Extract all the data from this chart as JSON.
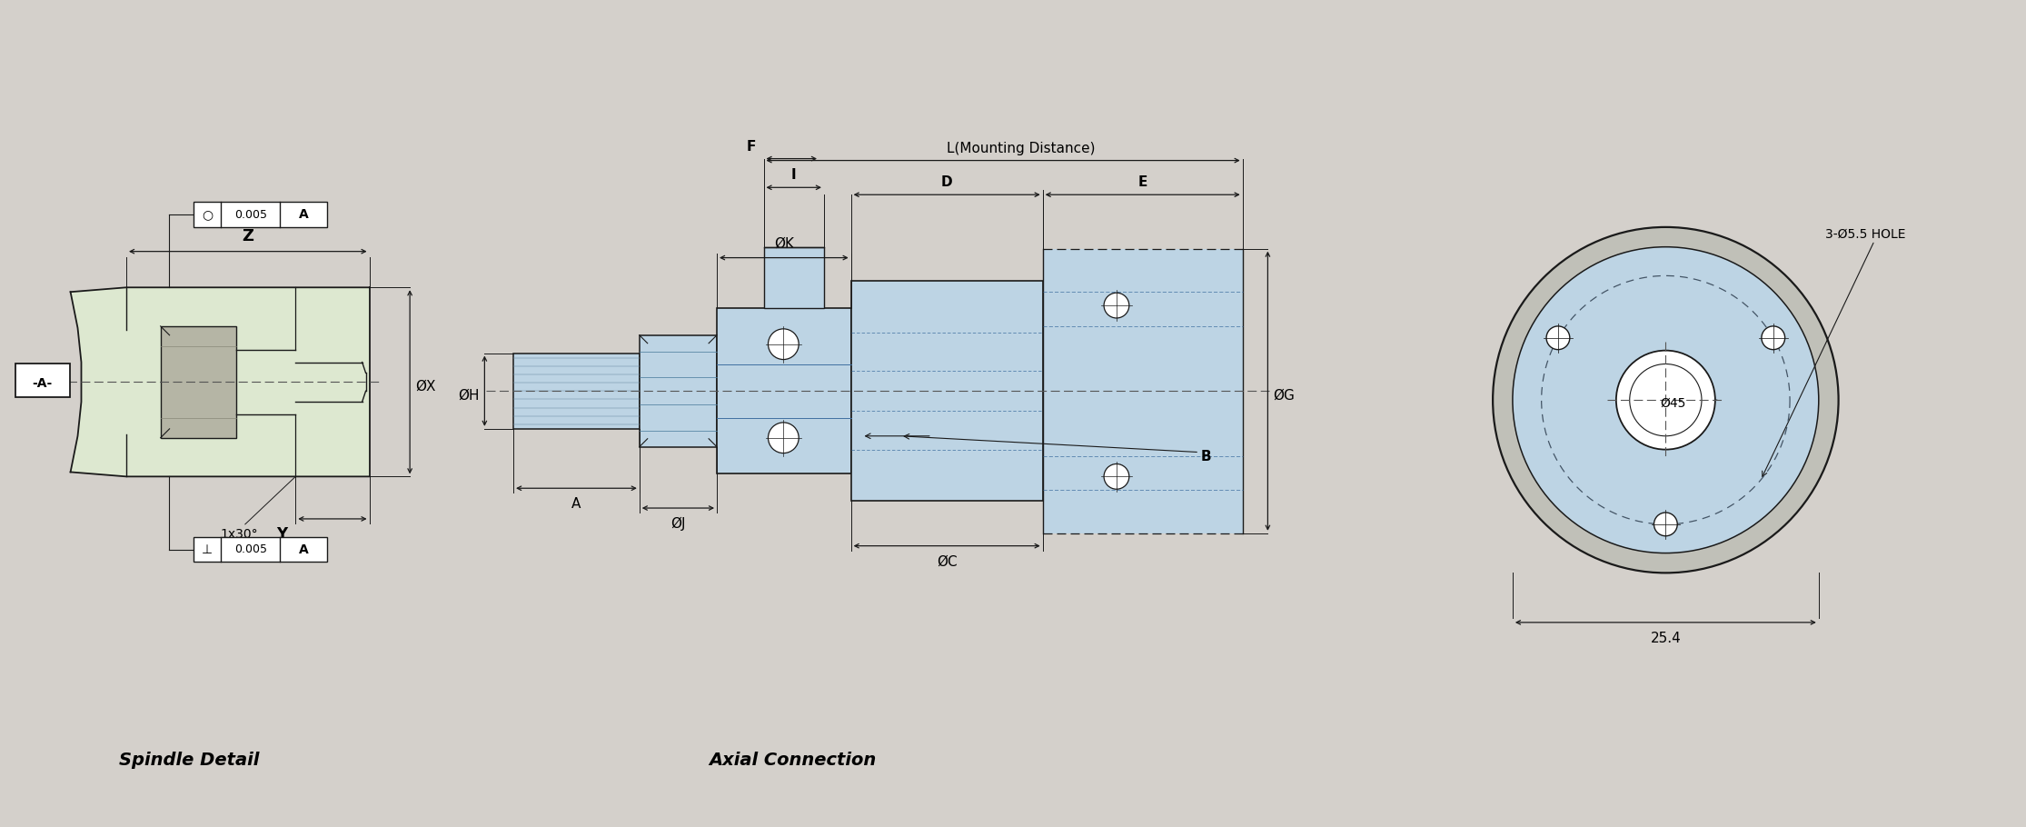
{
  "bg_color": "#d4d0cb",
  "line_color": "#1a1a1a",
  "fill_green": "#dde8d0",
  "fill_blue": "#bdd4e4",
  "fill_blue2": "#a8c8de",
  "title_spindle": "Spindle Detail",
  "title_axial": "Axial Connection",
  "annotation_hole": "3-Ø5.5 HOLE",
  "annotation_45": "Ø45",
  "annotation_254": "25.4",
  "dim_z": "Z",
  "dim_y": "Y",
  "dim_x": "ØX",
  "dim_h": "ØH",
  "dim_j": "ØJ",
  "dim_k": "ØK",
  "dim_c": "ØC",
  "dim_g": "ØG",
  "dim_a": "A",
  "dim_f": "F",
  "dim_i": "I",
  "dim_d": "D",
  "dim_e": "E",
  "dim_l": "L(Mounting Distance)",
  "dim_b": "B",
  "chamfer": "1x30°",
  "ref_a": "-A-"
}
